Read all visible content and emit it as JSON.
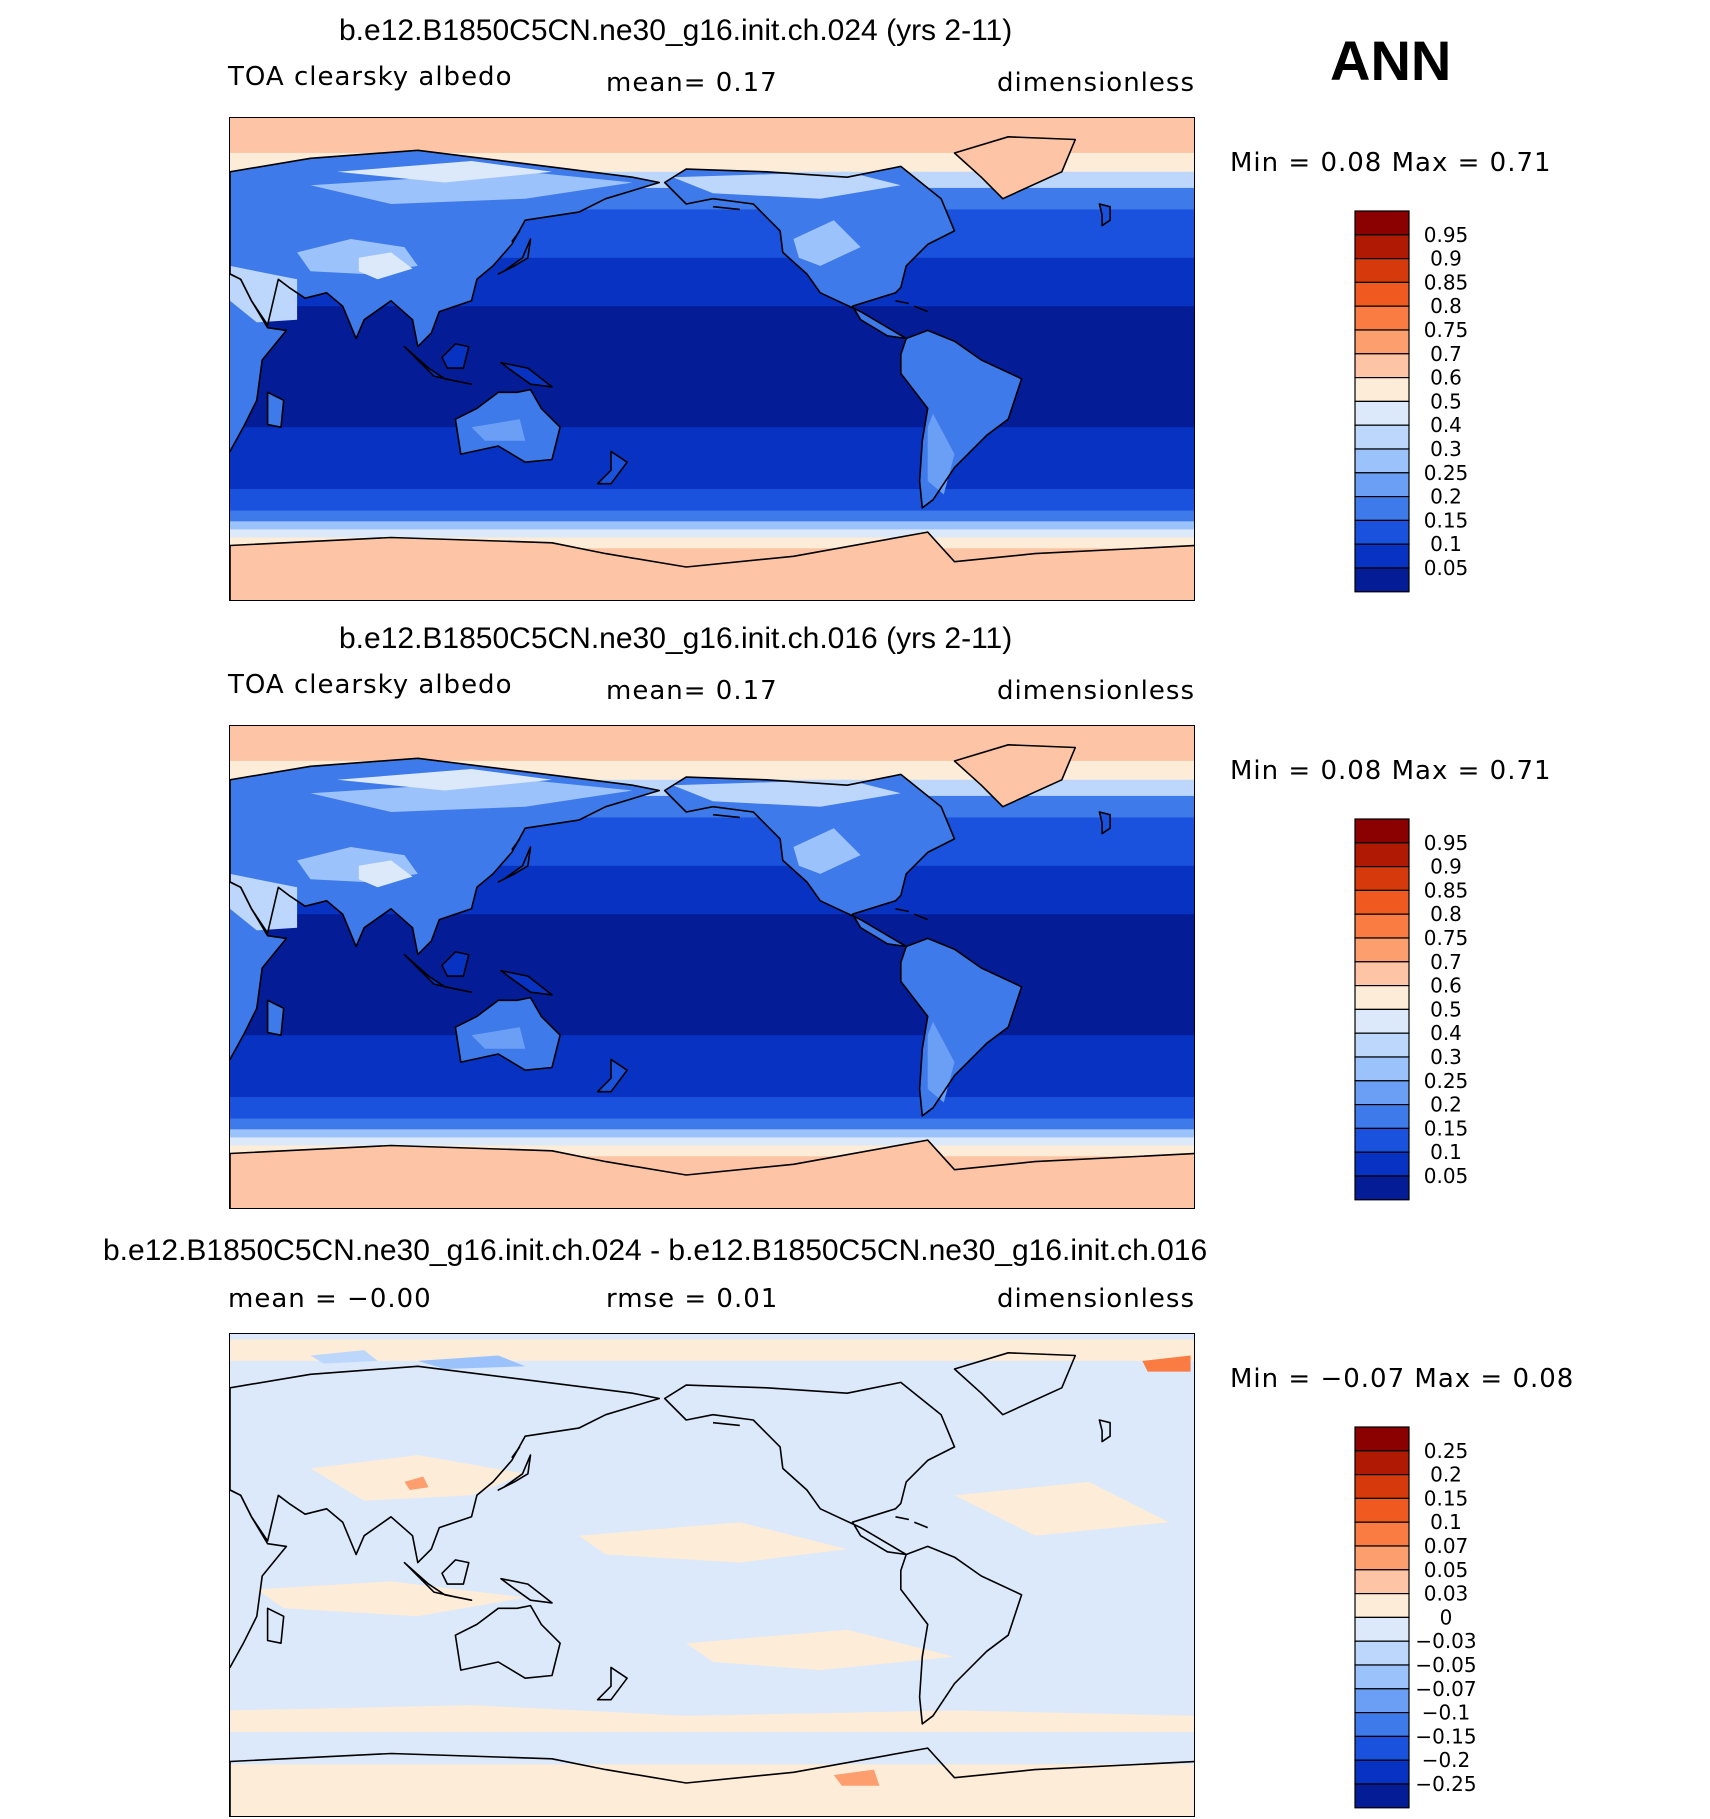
{
  "season": "ANN",
  "panels": [
    {
      "title": "b.e12.B1850C5CN.ne30_g16.init.ch.024 (yrs 2-11)",
      "left": "TOA clearsky albedo",
      "mid": "mean=    0.17",
      "right": "dimensionless",
      "minmax": "Min =     0.08  Max =     0.71",
      "colorbar": {
        "labels": [
          "0.95",
          "0.9",
          "0.85",
          "0.8",
          "0.75",
          "0.7",
          "0.6",
          "0.5",
          "0.4",
          "0.3",
          "0.25",
          "0.2",
          "0.15",
          "0.1",
          "0.05"
        ],
        "colors": [
          "#8b0000",
          "#b01a05",
          "#d63a0c",
          "#f05a20",
          "#fb7c42",
          "#fd9e6e",
          "#fdc5a5",
          "#fdecd8",
          "#dbe9fb",
          "#bcd7fb",
          "#9cc2fb",
          "#6b9ff5",
          "#3e7ae9",
          "#1a52dd",
          "#0732c2",
          "#041c96"
        ],
        "mode": "albedo"
      }
    },
    {
      "title": "b.e12.B1850C5CN.ne30_g16.init.ch.016 (yrs 2-11)",
      "left": "TOA clearsky albedo",
      "mid": "mean=    0.17",
      "right": "dimensionless",
      "minmax": "Min =     0.08  Max =     0.71",
      "colorbar": {
        "labels": [
          "0.95",
          "0.9",
          "0.85",
          "0.8",
          "0.75",
          "0.7",
          "0.6",
          "0.5",
          "0.4",
          "0.3",
          "0.25",
          "0.2",
          "0.15",
          "0.1",
          "0.05"
        ],
        "colors": [
          "#8b0000",
          "#b01a05",
          "#d63a0c",
          "#f05a20",
          "#fb7c42",
          "#fd9e6e",
          "#fdc5a5",
          "#fdecd8",
          "#dbe9fb",
          "#bcd7fb",
          "#9cc2fb",
          "#6b9ff5",
          "#3e7ae9",
          "#1a52dd",
          "#0732c2",
          "#041c96"
        ],
        "mode": "albedo"
      }
    },
    {
      "title": "b.e12.B1850C5CN.ne30_g16.init.ch.024 - b.e12.B1850C5CN.ne30_g16.init.ch.016",
      "left": "mean =   −0.00",
      "mid": "rmse =    0.01",
      "right": "dimensionless",
      "minmax": "Min =   −0.07  Max =    0.08",
      "colorbar": {
        "labels": [
          "0.25",
          "0.2",
          "0.15",
          "0.1",
          "0.07",
          "0.05",
          "0.03",
          "0",
          "−0.03",
          "−0.05",
          "−0.07",
          "−0.1",
          "−0.15",
          "−0.2",
          "−0.25"
        ],
        "colors": [
          "#8b0000",
          "#b01a05",
          "#d63a0c",
          "#f05a20",
          "#fb7c42",
          "#fd9e6e",
          "#fdc5a5",
          "#fdecd8",
          "#dbe9fb",
          "#bcd7fb",
          "#9cc2fb",
          "#6b9ff5",
          "#3e7ae9",
          "#1a52dd",
          "#0732c2",
          "#041c96"
        ],
        "mode": "diff"
      }
    }
  ]
}
